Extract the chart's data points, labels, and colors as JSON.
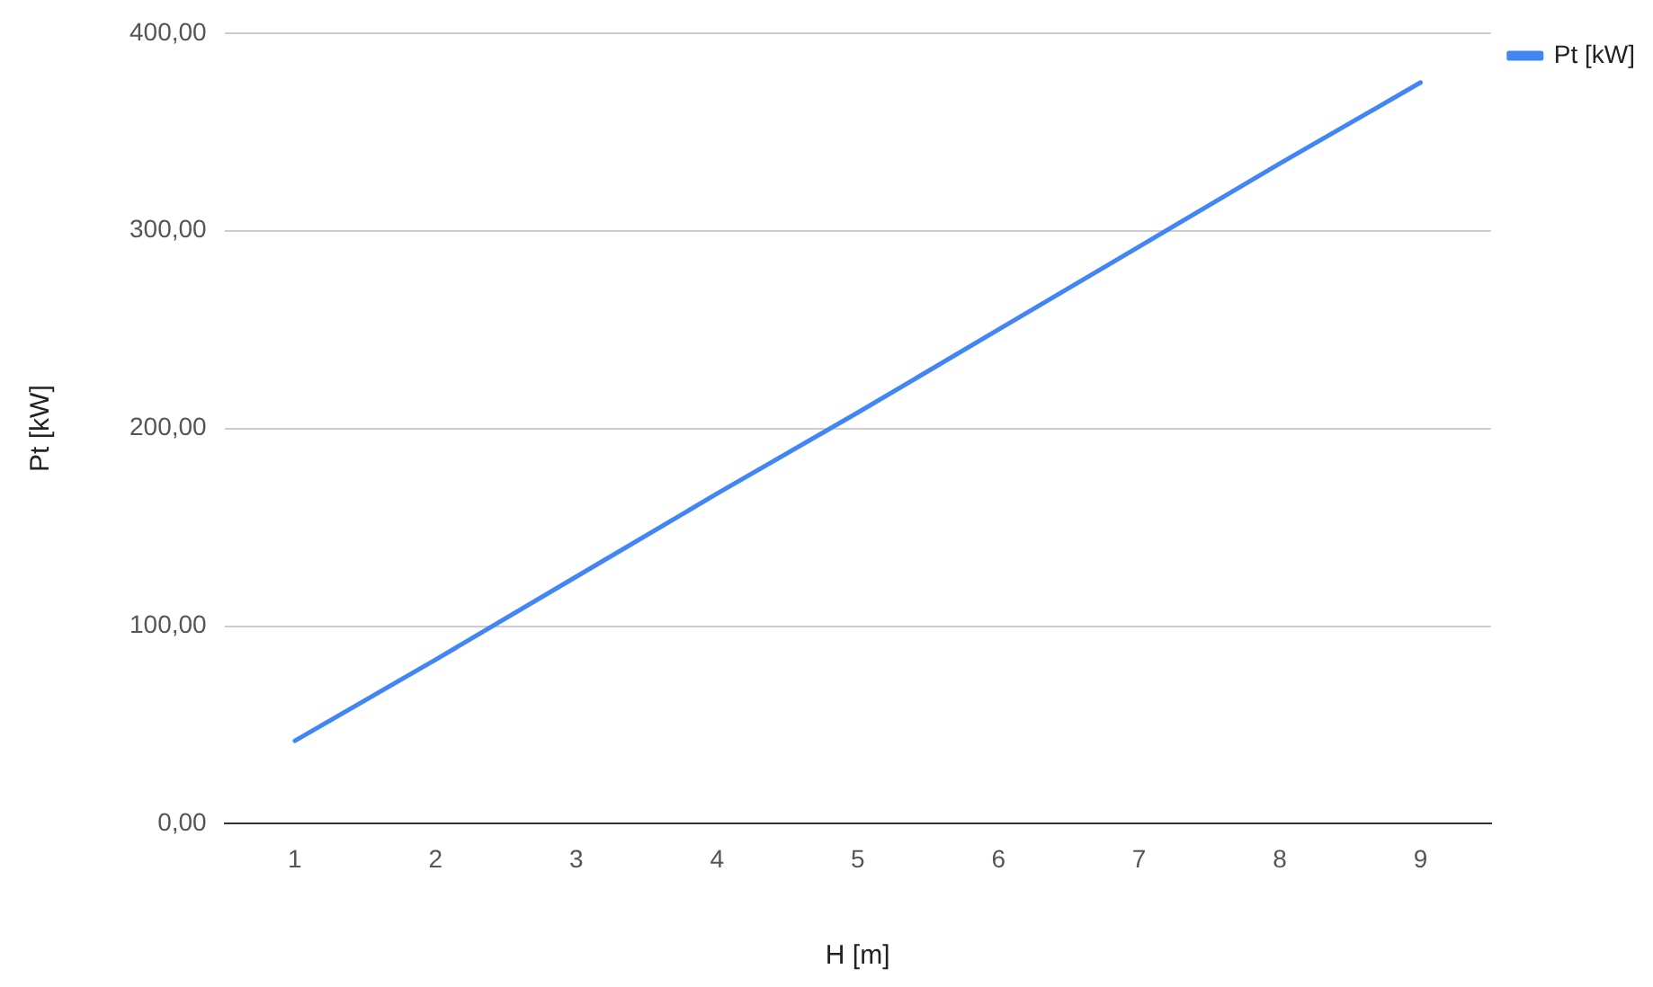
{
  "chart_data": {
    "type": "line",
    "xlabel": "H [m]",
    "ylabel": "Pt [kW]",
    "categories": [
      "1",
      "2",
      "3",
      "4",
      "5",
      "6",
      "7",
      "8",
      "9"
    ],
    "series": [
      {
        "name": "Pt [kW]",
        "color": "#4285f4",
        "values": [
          42,
          83,
          125,
          167,
          208,
          250,
          292,
          334,
          375
        ]
      }
    ],
    "ylim": [
      0,
      400
    ],
    "yticks": [
      {
        "value": 0,
        "label": "0,00"
      },
      {
        "value": 100,
        "label": "100,00"
      },
      {
        "value": 200,
        "label": "200,00"
      },
      {
        "value": 300,
        "label": "300,00"
      },
      {
        "value": 400,
        "label": "400,00"
      }
    ],
    "grid": "y",
    "legend": "top right",
    "marker": "none",
    "line_style": "solid"
  }
}
